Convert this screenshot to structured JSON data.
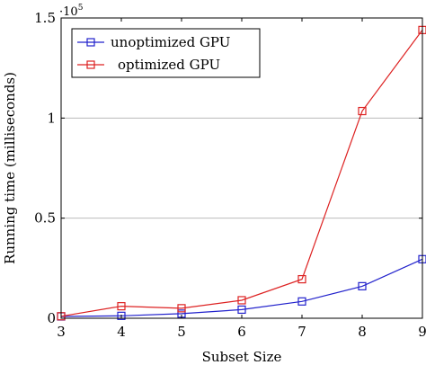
{
  "chart_data": {
    "type": "line",
    "title": "",
    "xlabel": "Subset Size",
    "ylabel": "Running time (milliseconds)",
    "y_scale_label": "·10",
    "y_scale_exponent": "5",
    "x": [
      3,
      4,
      5,
      6,
      7,
      8,
      9
    ],
    "xlim": [
      3,
      9
    ],
    "ylim": [
      0,
      150000
    ],
    "x_ticks": [
      "3",
      "4",
      "5",
      "6",
      "7",
      "8",
      "9"
    ],
    "y_ticks": [
      {
        "value": 0,
        "label": "0"
      },
      {
        "value": 50000,
        "label": "0.5"
      },
      {
        "value": 100000,
        "label": "1"
      },
      {
        "value": 150000,
        "label": "1.5"
      }
    ],
    "grid": "horizontal",
    "legend_position": "top-left",
    "marker": "square",
    "series": [
      {
        "name": "unoptimized GPU",
        "color": "#2222cc",
        "values": [
          900,
          1200,
          2300,
          4300,
          8400,
          16000,
          29500
        ]
      },
      {
        "name": "optimized GPU",
        "color": "#dd2222",
        "values": [
          1000,
          6000,
          5000,
          9000,
          19500,
          103500,
          144000
        ]
      }
    ]
  }
}
